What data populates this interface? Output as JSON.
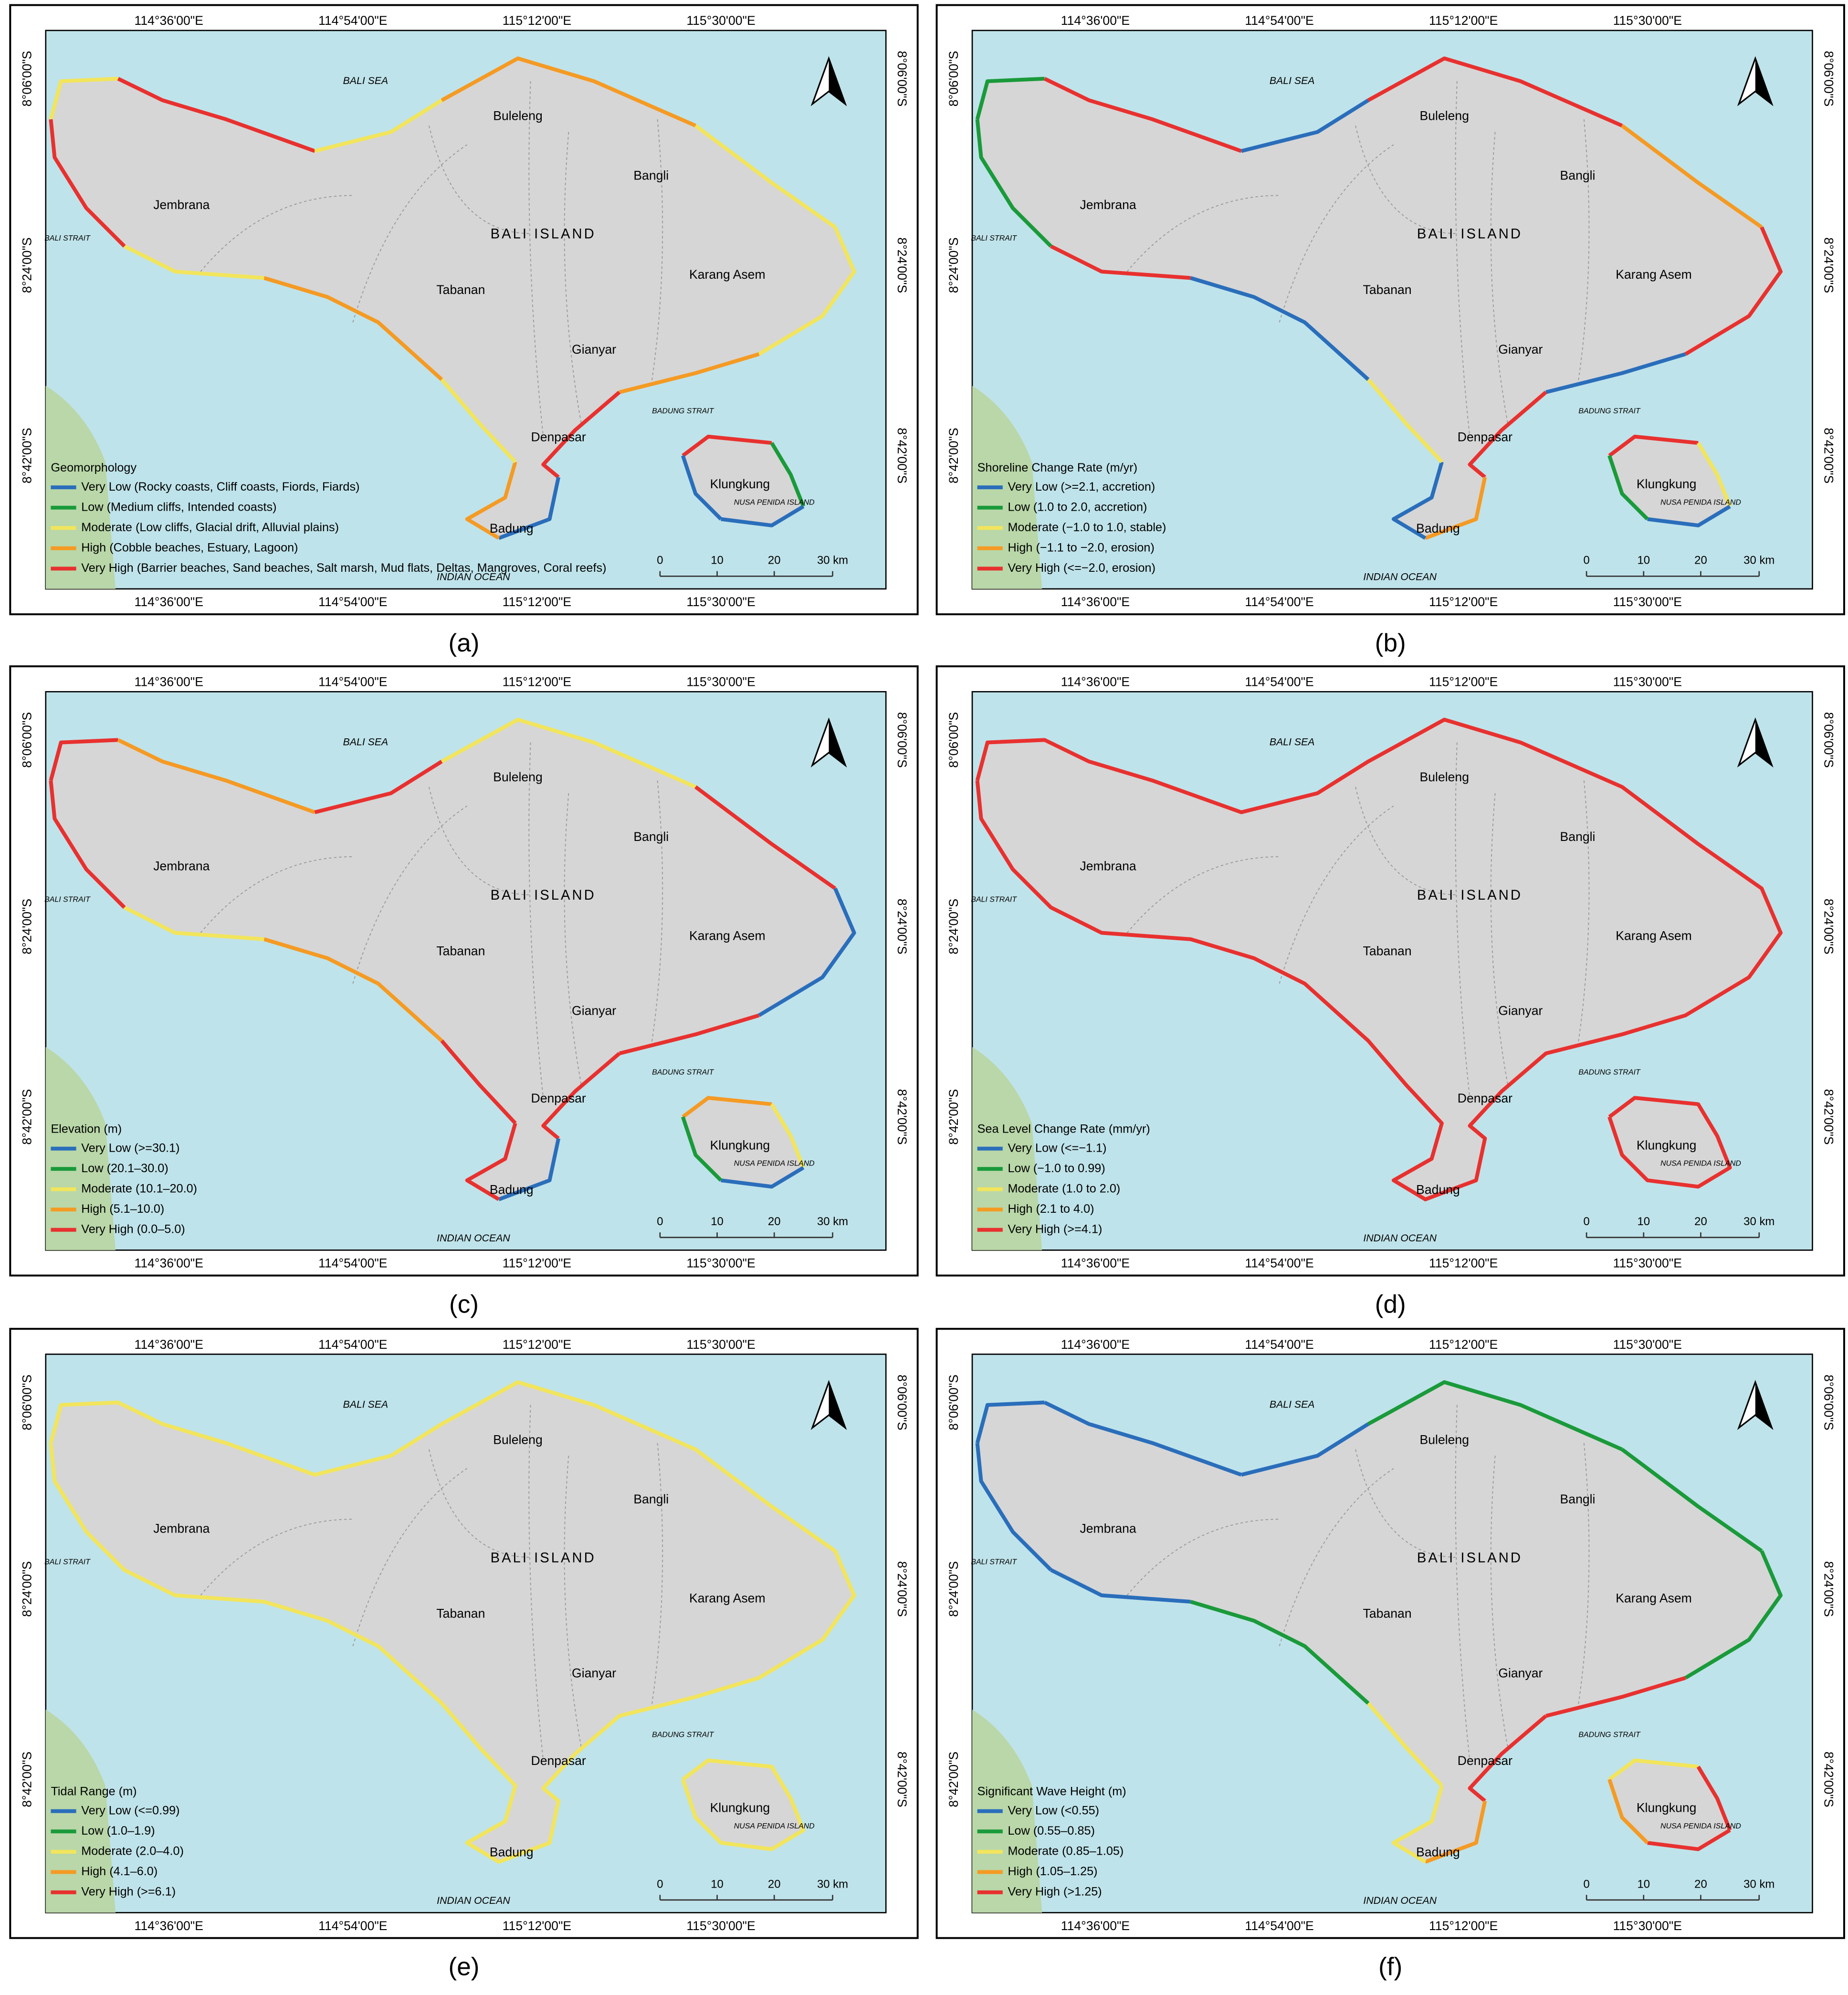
{
  "map": {
    "lon_labels": [
      "114°36'00\"E",
      "114°54'00\"E",
      "115°12'00\"E",
      "115°30'00\"E"
    ],
    "lat_labels": [
      "8°06'00\"S",
      "8°24'00\"S",
      "8°42'00\"S"
    ],
    "places": [
      "BALI SEA",
      "Buleleng",
      "Bangli",
      "Jembrana",
      "BALI ISLAND",
      "BALI STRAIT",
      "Karang Asem",
      "Tabanan",
      "Gianyar",
      "BADUNG STRAIT",
      "Denpasar",
      "Klungkung",
      "NUSA PENIDA ISLAND",
      "Badung",
      "INDIAN OCEAN"
    ],
    "scale": [
      "0",
      "10",
      "20",
      "30 km"
    ],
    "legend_colors": [
      "#2a6ebb",
      "#1a9a3a",
      "#f2e55c",
      "#f59a23",
      "#e8312f"
    ]
  },
  "panels": [
    {
      "label": "(a)",
      "legend_title": "Geomorphology",
      "legend": [
        "Very Low (Rocky coasts, Cliff coasts, Fiords, Fiards)",
        "Low (Medium cliffs, Intended coasts)",
        "Moderate (Low cliffs, Glacial drift, Alluvial plains)",
        "High (Cobble beaches, Estuary, Lagoon)",
        "Very High (Barrier beaches, Sand beaches, Salt marsh, Mud flats, Deltas, Mangroves, Coral reefs)"
      ],
      "coast_colors": [
        "#f2e55c",
        "#e8312f",
        "#f2e55c",
        "#f59a23",
        "#f2e55c",
        "#f2e55c",
        "#f59a23",
        "#e8312f",
        "#2a6ebb",
        "#f59a23",
        "#f2e55c",
        "#f59a23",
        "#f2e55c",
        "#e8312f"
      ],
      "nusa_colors": [
        "#e8312f",
        "#1a9a3a",
        "#2a6ebb",
        "#2a6ebb"
      ]
    },
    {
      "label": "(b)",
      "legend_title": "Shoreline Change Rate (m/yr)",
      "legend": [
        "Very Low (>=2.1, accretion)",
        "Low (1.0 to 2.0, accretion)",
        "Moderate (−1.0 to 1.0, stable)",
        "High (−1.1 to −2.0, erosion)",
        "Very High (<=−2.0, erosion)"
      ],
      "coast_colors": [
        "#1a9a3a",
        "#e8312f",
        "#2a6ebb",
        "#e8312f",
        "#f59a23",
        "#e8312f",
        "#2a6ebb",
        "#e8312f",
        "#f59a23",
        "#2a6ebb",
        "#f2e55c",
        "#2a6ebb",
        "#e8312f",
        "#1a9a3a"
      ],
      "nusa_colors": [
        "#e8312f",
        "#f2e55c",
        "#2a6ebb",
        "#1a9a3a"
      ]
    },
    {
      "label": "(c)",
      "legend_title": "Elevation (m)",
      "legend": [
        "Very Low (>=30.1)",
        "Low (20.1–30.0)",
        "Moderate (10.1–20.0)",
        "High (5.1–10.0)",
        "Very High (0.0–5.0)"
      ],
      "coast_colors": [
        "#e8312f",
        "#f59a23",
        "#e8312f",
        "#f2e55c",
        "#e8312f",
        "#2a6ebb",
        "#e8312f",
        "#e8312f",
        "#2a6ebb",
        "#e8312f",
        "#e8312f",
        "#f59a23",
        "#f2e55c",
        "#e8312f"
      ],
      "nusa_colors": [
        "#f59a23",
        "#f2e55c",
        "#2a6ebb",
        "#1a9a3a"
      ]
    },
    {
      "label": "(d)",
      "legend_title": "Sea Level Change Rate (mm/yr)",
      "legend": [
        "Very Low (<=−1.1)",
        "Low (−1.0 to 0.99)",
        "Moderate (1.0 to 2.0)",
        "High (2.1 to 4.0)",
        "Very High (>=4.1)"
      ],
      "coast_colors": [
        "#e8312f"
      ],
      "nusa_colors": [
        "#e8312f"
      ]
    },
    {
      "label": "(e)",
      "legend_title": "Tidal Range (m)",
      "legend": [
        "Very Low (<=0.99)",
        "Low (1.0–1.9)",
        "Moderate (2.0–4.0)",
        "High (4.1–6.0)",
        "Very High (>=6.1)"
      ],
      "coast_colors": [
        "#f2e55c"
      ],
      "nusa_colors": [
        "#f2e55c"
      ]
    },
    {
      "label": "(f)",
      "legend_title": "Significant Wave Height (m)",
      "legend": [
        "Very Low (<0.55)",
        "Low (0.55–0.85)",
        "Moderate (0.85–1.05)",
        "High (1.05–1.25)",
        "Very High (>1.25)"
      ],
      "coast_colors": [
        "#2a6ebb",
        "#2a6ebb",
        "#2a6ebb",
        "#1a9a3a",
        "#1a9a3a",
        "#1a9a3a",
        "#e8312f",
        "#e8312f",
        "#f59a23",
        "#f2e55c",
        "#f2e55c",
        "#1a9a3a",
        "#2a6ebb",
        "#2a6ebb"
      ],
      "nusa_colors": [
        "#f2e55c",
        "#e8312f",
        "#e8312f",
        "#f59a23"
      ]
    }
  ]
}
